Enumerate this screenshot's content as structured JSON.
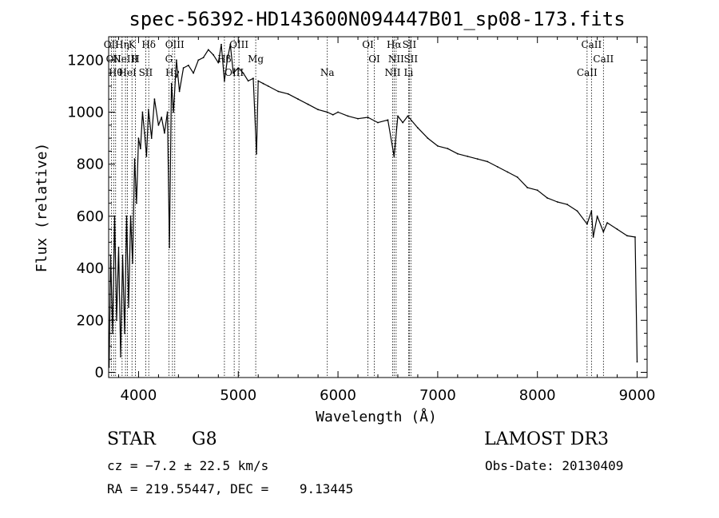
{
  "chart_data": {
    "type": "line",
    "title": "spec-56392-HD143600N094447B01_sp08-173.fits",
    "xlabel": "Wavelength (Å)",
    "ylabel": "Flux (relative)",
    "xlim": [
      3700,
      9100
    ],
    "ylim": [
      -20,
      1290
    ],
    "xticks": [
      4000,
      5000,
      6000,
      7000,
      8000,
      9000
    ],
    "yticks": [
      0,
      200,
      400,
      600,
      800,
      1000,
      1200
    ],
    "grid": false,
    "series": [
      {
        "x": [
          3705,
          3720,
          3740,
          3760,
          3780,
          3800,
          3820,
          3840,
          3860,
          3880,
          3900,
          3920,
          3940,
          3960,
          3980,
          4000,
          4020,
          4040,
          4060,
          4080,
          4100,
          4130,
          4160,
          4200,
          4230,
          4260,
          4290,
          4310,
          4330,
          4350,
          4380,
          4410,
          4450,
          4500,
          4550,
          4600,
          4650,
          4700,
          4750,
          4800,
          4830,
          4861,
          4890,
          4920,
          4950,
          5000,
          5050,
          5100,
          5150,
          5183,
          5200,
          5250,
          5300,
          5400,
          5500,
          5600,
          5700,
          5800,
          5893,
          5950,
          6000,
          6100,
          6200,
          6300,
          6400,
          6500,
          6563,
          6600,
          6650,
          6700,
          6800,
          6900,
          7000,
          7100,
          7200,
          7300,
          7400,
          7500,
          7600,
          7700,
          7800,
          7900,
          8000,
          8100,
          8200,
          8300,
          8400,
          8498,
          8542,
          8560,
          8600,
          8662,
          8700,
          8800,
          8900,
          8980,
          9000
        ],
        "values": [
          20,
          450,
          150,
          600,
          200,
          480,
          60,
          450,
          150,
          600,
          250,
          600,
          420,
          820,
          650,
          900,
          860,
          1000,
          920,
          830,
          1010,
          900,
          1050,
          950,
          980,
          920,
          1000,
          480,
          1110,
          1000,
          1200,
          1080,
          1170,
          1180,
          1150,
          1200,
          1210,
          1240,
          1220,
          1190,
          1260,
          1120,
          1200,
          1260,
          1150,
          1170,
          1150,
          1120,
          1130,
          840,
          1120,
          1110,
          1100,
          1080,
          1070,
          1050,
          1030,
          1010,
          1000,
          990,
          1000,
          985,
          975,
          980,
          960,
          970,
          830,
          985,
          960,
          985,
          940,
          900,
          870,
          860,
          840,
          830,
          820,
          810,
          790,
          770,
          750,
          710,
          700,
          670,
          655,
          645,
          620,
          570,
          620,
          520,
          600,
          540,
          575,
          550,
          525,
          520,
          40
        ]
      }
    ],
    "line_markers": [
      {
        "x": 3727,
        "label": "OII"
      },
      {
        "x": 3750,
        "label": "OII"
      },
      {
        "x": 3770,
        "label": "Hθ"
      },
      {
        "x": 3835,
        "label": "Hη"
      },
      {
        "x": 3869,
        "label": "NeIII"
      },
      {
        "x": 3889,
        "label": "HeI"
      },
      {
        "x": 3934,
        "label": "K"
      },
      {
        "x": 3969,
        "label": "H"
      },
      {
        "x": 4072,
        "label": "SII"
      },
      {
        "x": 4102,
        "label": "Hδ"
      },
      {
        "x": 4304,
        "label": "G"
      },
      {
        "x": 4340,
        "label": "Hγ"
      },
      {
        "x": 4363,
        "label": "OIII"
      },
      {
        "x": 4861,
        "label": "Hβ"
      },
      {
        "x": 4959,
        "label": "OIII"
      },
      {
        "x": 5007,
        "label": "OIII"
      },
      {
        "x": 5175,
        "label": "Mg"
      },
      {
        "x": 5893,
        "label": "Na"
      },
      {
        "x": 6300,
        "label": "OI"
      },
      {
        "x": 6364,
        "label": "OI"
      },
      {
        "x": 6548,
        "label": "NII"
      },
      {
        "x": 6563,
        "label": "Hα"
      },
      {
        "x": 6583,
        "label": "NII"
      },
      {
        "x": 6708,
        "label": "Li"
      },
      {
        "x": 6716,
        "label": "SII"
      },
      {
        "x": 6731,
        "label": "SII"
      },
      {
        "x": 8498,
        "label": "CaII"
      },
      {
        "x": 8542,
        "label": "CaII"
      },
      {
        "x": 8662,
        "label": "CaII"
      }
    ]
  },
  "info": {
    "class_label": "STAR",
    "subclass_label": "G8",
    "cz": "cz = −7.2 ± 22.5 km/s",
    "coords": "RA = 219.55447, DEC =    9.13445",
    "survey": "LAMOST DR3",
    "obs_date": "Obs-Date: 20130409"
  }
}
